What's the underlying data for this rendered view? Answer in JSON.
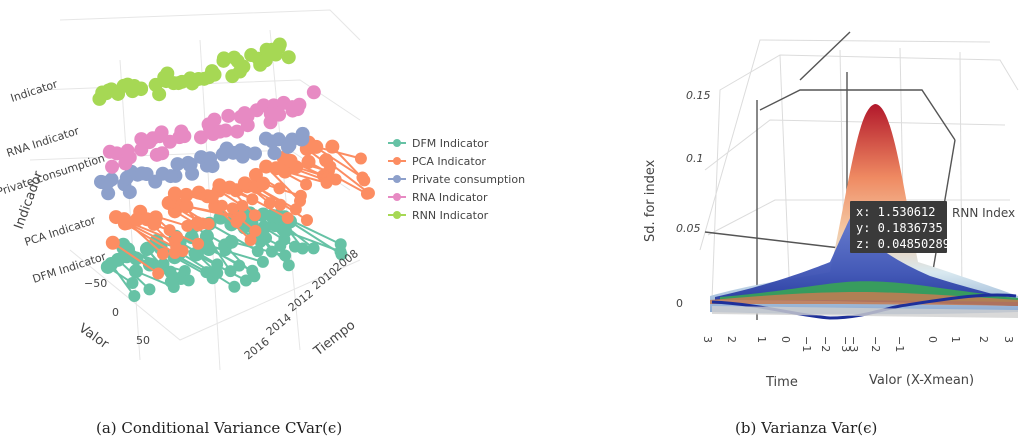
{
  "captions": {
    "left": "(a) Conditional Variance CVar(ϵ)",
    "right": "(b) Varianza Var(ϵ)"
  },
  "chart_data": [
    {
      "type": "scatter",
      "projection": "3d",
      "xlabel": "Valor",
      "ylabel": "Tiempo",
      "zlabel": "Indicador",
      "x_ticks": [
        "−50",
        "0",
        "50"
      ],
      "y_ticks": [
        "2008",
        "2010",
        "2012",
        "2014",
        "2016"
      ],
      "z_ticks": [
        "DFM Indicator",
        "PCA Indicator",
        "Private consumption",
        "RNA Indicator",
        "Indicator"
      ],
      "legend": {
        "position": "right",
        "entries": [
          {
            "name": "DFM Indicator",
            "color": "#66c2a5"
          },
          {
            "name": "PCA Indicator",
            "color": "#fc8d62"
          },
          {
            "name": "Private consumption",
            "color": "#8da0cb"
          },
          {
            "name": "RNA Indicator",
            "color": "#e78ac3"
          },
          {
            "name": "RNN Indicator",
            "color": "#a6d854"
          }
        ]
      },
      "series": [
        {
          "name": "DFM Indicator",
          "color": "#66c2a5"
        },
        {
          "name": "PCA Indicator",
          "color": "#fc8d62"
        },
        {
          "name": "Private consumption",
          "color": "#8da0cb"
        },
        {
          "name": "RNA Indicator",
          "color": "#e78ac3"
        },
        {
          "name": "RNN Indicator",
          "color": "#a6d854"
        }
      ]
    },
    {
      "type": "surface",
      "projection": "3d",
      "xlabel": "Time",
      "ylabel": "Valor (X-Xmean)",
      "zlabel": "Sd. for index",
      "z_ticks": [
        "0",
        "0.05",
        "0.1",
        "0.15"
      ],
      "x_ticks": [
        "3",
        "2",
        "1",
        "0",
        "−1",
        "−2",
        "−3"
      ],
      "y_ticks": [
        "−3",
        "−2",
        "−1",
        "0",
        "1",
        "2",
        "3"
      ],
      "series_label": "RNN Index",
      "tooltip": {
        "x": "x: 1.530612",
        "y": "y: 0.1836735",
        "z": "z: 0.04850289"
      }
    }
  ]
}
